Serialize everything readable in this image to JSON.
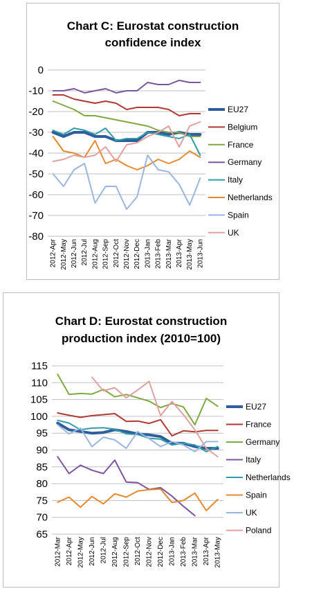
{
  "chart_data": [
    {
      "type": "line",
      "title_line1": "Chart C: Eurostat construction",
      "title_line2": "confidence index",
      "xlabel": "",
      "ylabel": "",
      "ylim": [
        -80,
        0
      ],
      "yticks": [
        0,
        -10,
        -20,
        -30,
        -40,
        -50,
        -60,
        -70,
        -80
      ],
      "categories": [
        "2012-Apr",
        "2012-May",
        "2012-Jun",
        "2012-Jul",
        "2012-Aug",
        "2012-Sep",
        "2012-Oct",
        "2012-Nov",
        "2012-Dec",
        "2013-Jan",
        "2013-Feb",
        "2013-Mar",
        "2013-Apr",
        "2013-May",
        "2013-Jun"
      ],
      "grid": true,
      "legend_position": "right",
      "series": [
        {
          "name": "EU27",
          "color": "#2e5e9e",
          "width": 4,
          "values": [
            -30,
            -32,
            -30,
            -30,
            -32,
            -32,
            -34,
            -34,
            -34,
            -30,
            -30,
            -31,
            -30,
            -31,
            -31
          ]
        },
        {
          "name": "Belgium",
          "color": "#b03a32",
          "width": 2,
          "values": [
            -12,
            -12,
            -14,
            -15,
            -16,
            -15,
            -16,
            -19,
            -18,
            -18,
            -18,
            -19,
            -22,
            -21,
            -21
          ]
        },
        {
          "name": "France",
          "color": "#80a840",
          "width": 2,
          "values": [
            -15,
            -17,
            -19,
            -22,
            -22,
            -23,
            -24,
            -25,
            -26,
            -27,
            -29,
            -30,
            -30,
            -32,
            -32
          ]
        },
        {
          "name": "Germany",
          "color": "#7b55a0",
          "width": 2,
          "values": [
            -10,
            -10,
            -9,
            -11,
            -10,
            -9,
            -11,
            -10,
            -10,
            -6,
            -7,
            -7,
            -5,
            -6,
            -6
          ]
        },
        {
          "name": "Italy",
          "color": "#2f9ca8",
          "width": 2,
          "values": [
            -29,
            -31,
            -28,
            -29,
            -31,
            -28,
            -34,
            -33,
            -33,
            -30,
            -31,
            -32,
            -33,
            -31,
            -41
          ]
        },
        {
          "name": "Netherlands",
          "color": "#e58a2c",
          "width": 2,
          "values": [
            -32,
            -39,
            -40,
            -42,
            -34,
            -45,
            -43,
            -46,
            -48,
            -46,
            -43,
            -45,
            -43,
            -39,
            -42
          ]
        },
        {
          "name": "Spain",
          "color": "#9ab6e0",
          "width": 2,
          "values": [
            -50,
            -56,
            -48,
            -45,
            -64,
            -56,
            -56,
            -67,
            -61,
            -41,
            -48,
            -49,
            -55,
            -65,
            -52
          ]
        },
        {
          "name": "UK",
          "color": "#e0a0a0",
          "width": 2,
          "values": [
            -44,
            -43,
            -41,
            -42,
            -41,
            -37,
            -44,
            -36,
            -35,
            -32,
            -30,
            -27,
            -37,
            -27,
            -25
          ]
        }
      ]
    },
    {
      "type": "line",
      "title_line1": "Chart D: Eurostat construction",
      "title_line2": "production index (2010=100)",
      "xlabel": "",
      "ylabel": "",
      "ylim": [
        65,
        115
      ],
      "yticks": [
        115,
        110,
        105,
        100,
        95,
        90,
        85,
        80,
        75,
        70,
        65
      ],
      "categories": [
        "2012-Mar",
        "2012-Apr",
        "2012-May",
        "2012-Jun",
        "2012-Jul",
        "2012-Aug",
        "2012-Sep",
        "2012-Oct",
        "2012-Nov",
        "2012-Dec",
        "2013-Jan",
        "2013-Feb",
        "2013-Mar",
        "2013-Apr",
        "2013-May"
      ],
      "grid": true,
      "legend_position": "right",
      "series": [
        {
          "name": "EU27",
          "color": "#2e5e9e",
          "width": 4,
          "values": [
            98,
            96,
            95.5,
            95,
            95.2,
            96,
            95.5,
            94.8,
            94.5,
            94,
            92,
            92,
            91,
            90.5,
            90.5
          ]
        },
        {
          "name": "France",
          "color": "#b03a32",
          "width": 2,
          "values": [
            101,
            100.3,
            99.7,
            100.2,
            100.5,
            100.8,
            98.5,
            98.6,
            97.9,
            99,
            94.2,
            95.7,
            95.4,
            95.8,
            95.8
          ]
        },
        {
          "name": "Germany",
          "color": "#80a840",
          "width": 2,
          "values": [
            112.5,
            106.5,
            106.8,
            106.6,
            108,
            105.8,
            106.5,
            105.5,
            104.5,
            102.6,
            103.8,
            102.8,
            97.5,
            105.3,
            103
          ]
        },
        {
          "name": "Italy",
          "color": "#7b55a0",
          "width": 2,
          "values": [
            88,
            83,
            85.5,
            84,
            83,
            87,
            80.5,
            80.3,
            78.3,
            78.8,
            76.3,
            73.3,
            70.5,
            null,
            null
          ]
        },
        {
          "name": "Netherlands",
          "color": "#2f9ca8",
          "width": 2,
          "values": [
            98.8,
            98,
            96,
            96.5,
            96.6,
            96.2,
            94.8,
            94.6,
            93.5,
            93.2,
            91.5,
            92,
            91.5,
            89.5,
            91
          ]
        },
        {
          "name": "Spain",
          "color": "#e58a2c",
          "width": 2,
          "values": [
            74.5,
            76,
            73,
            76.2,
            74,
            77,
            76,
            77.8,
            78.2,
            78.4,
            74.4,
            75,
            77.2,
            72,
            75.3
          ]
        },
        {
          "name": "UK",
          "color": "#9ab6e0",
          "width": 2,
          "values": [
            97.5,
            94.8,
            96.5,
            91,
            93.8,
            93,
            90.5,
            95.5,
            93.4,
            91,
            92.5,
            91.5,
            89.5,
            92.5,
            92.5
          ]
        },
        {
          "name": "Poland",
          "color": "#e0a0a0",
          "width": 2,
          "values": [
            null,
            null,
            null,
            111.6,
            107.6,
            108.5,
            105.5,
            107.8,
            110.4,
            100.2,
            104.4,
            100.5,
            96,
            90.5,
            88
          ]
        }
      ]
    }
  ]
}
